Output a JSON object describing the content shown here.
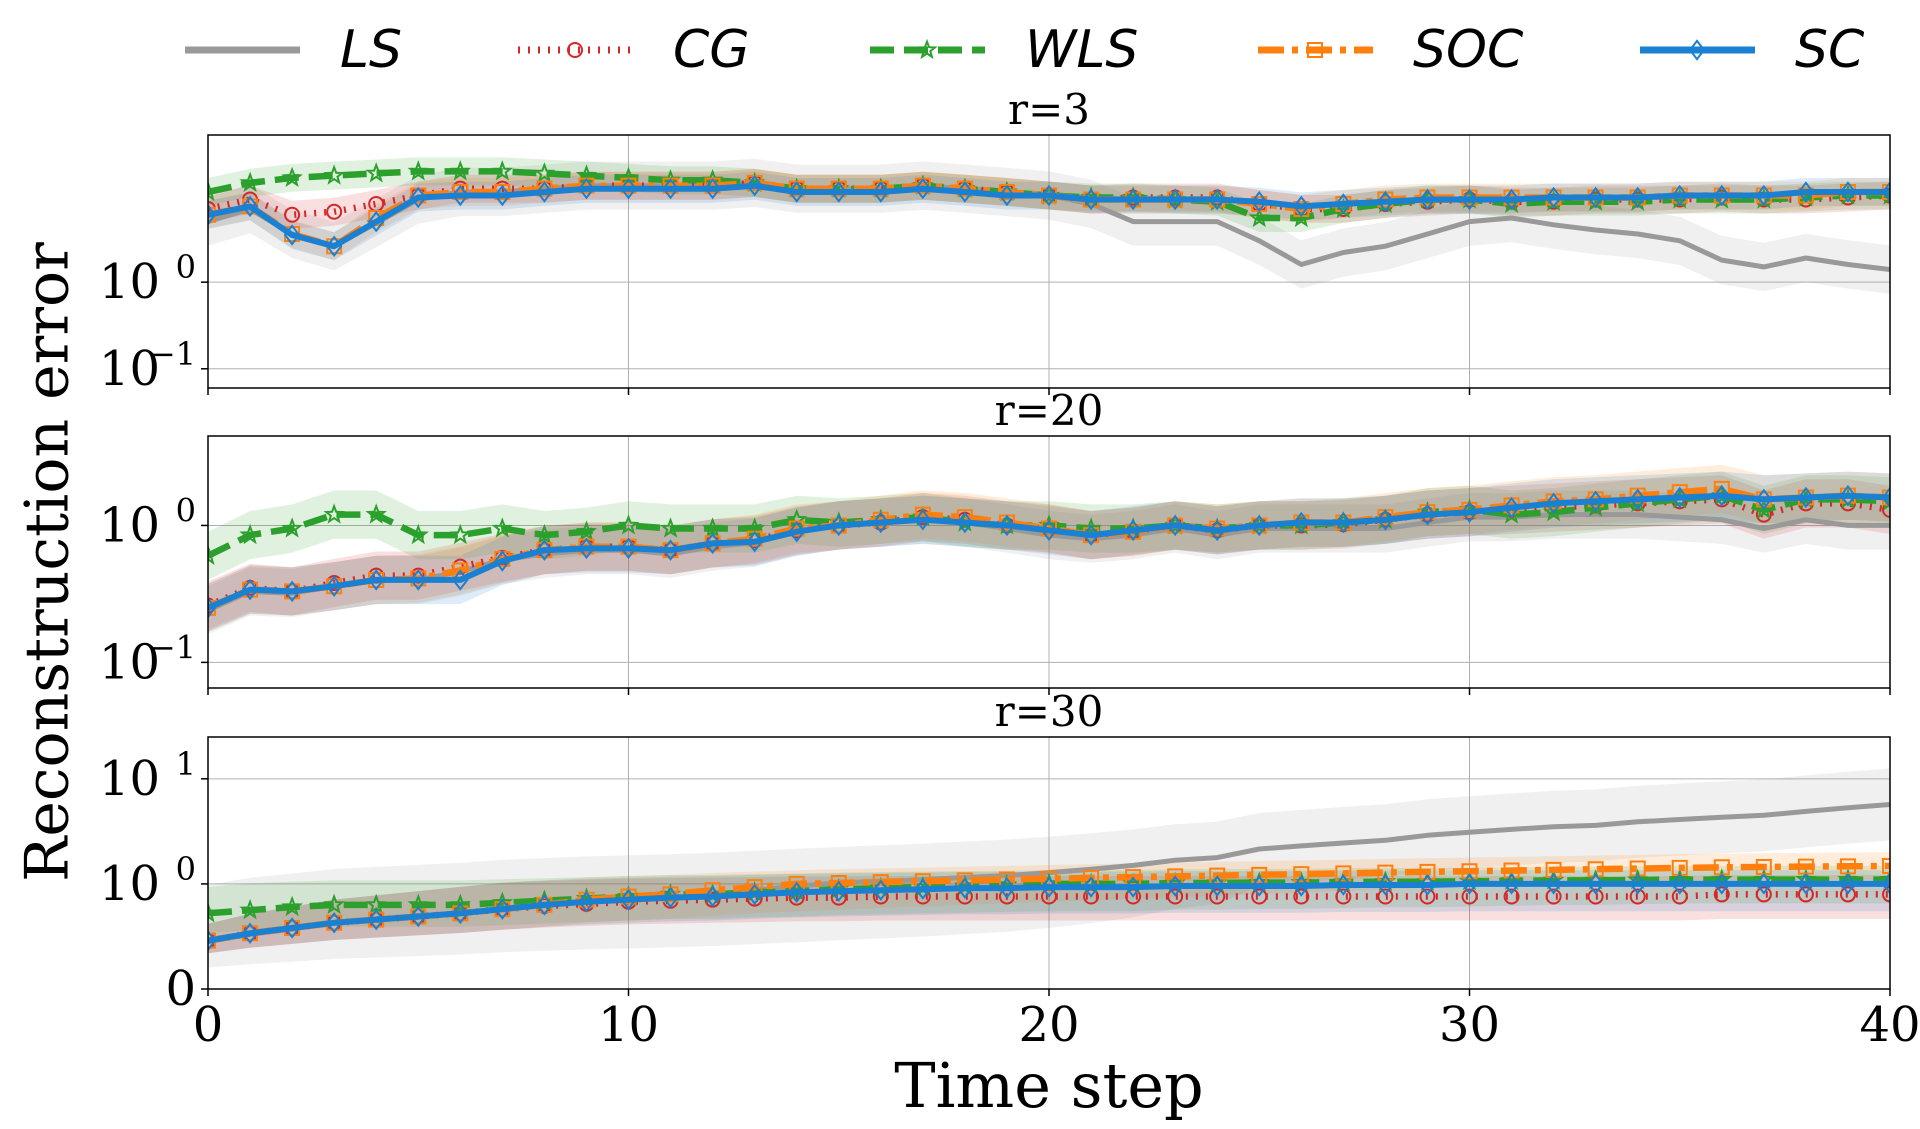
{
  "figure": {
    "ylabel": "Reconstruction error",
    "xlabel": "Time step"
  },
  "legend": {
    "placement": "top",
    "entries": [
      {
        "key": "LS",
        "label": "LS",
        "color": "#999999",
        "style": "solid",
        "marker": "none"
      },
      {
        "key": "CG",
        "label": "CG",
        "color": "#d62728",
        "style": "dotted",
        "marker": "circle"
      },
      {
        "key": "WLS",
        "label": "WLS",
        "color": "#2ca02c",
        "style": "dashed",
        "marker": "star"
      },
      {
        "key": "SOC",
        "label": "SOC",
        "color": "#ff7f0e",
        "style": "dashdot",
        "marker": "square"
      },
      {
        "key": "SC",
        "label": "SC",
        "color": "#1a80d2",
        "style": "solid",
        "marker": "diamond"
      }
    ]
  },
  "chart_data": [
    {
      "type": "line",
      "title": "r=3",
      "xlabel": "",
      "ylabel": "",
      "yscale": "log",
      "xlim": [
        0,
        40
      ],
      "ylim": [
        0.06,
        50
      ],
      "yticks": [
        {
          "value": 0.1,
          "base": "10",
          "exp": "−1"
        },
        {
          "value": 1,
          "base": "10",
          "exp": "0"
        }
      ],
      "xticks": [
        0,
        10,
        20,
        30,
        40
      ],
      "grid": true,
      "band_ratio": 1.45,
      "series": [
        {
          "name": "LS",
          "values": [
            5.0,
            7.0,
            3.6,
            2.6,
            4.8,
            9.0,
            11,
            11,
            12,
            13,
            13,
            13,
            13,
            14,
            12,
            12,
            12,
            13,
            12,
            11,
            10,
            8.0,
            5.0,
            5.0,
            5.0,
            3.0,
            1.6,
            2.2,
            2.6,
            3.6,
            5.0,
            5.5,
            4.6,
            4.0,
            3.6,
            3.0,
            1.8,
            1.5,
            1.9,
            1.6,
            1.4
          ]
        },
        {
          "name": "CG",
          "values": [
            7.0,
            9.0,
            6.0,
            6.5,
            8.0,
            10,
            12,
            12,
            12,
            13,
            13,
            13,
            13,
            14,
            12,
            12,
            12,
            13,
            12,
            11,
            10,
            9.0,
            9.5,
            9.5,
            9.5,
            8.0,
            7.0,
            7.0,
            8.0,
            8.5,
            9.0,
            8.5,
            8.5,
            9.0,
            9.0,
            9.0,
            9.5,
            9.0,
            9.0,
            9.5,
            10
          ]
        },
        {
          "name": "WLS",
          "values": [
            11,
            14,
            16,
            17,
            18,
            19,
            19,
            19,
            18,
            17,
            16,
            15,
            15,
            14,
            12,
            12,
            12,
            13,
            12,
            11,
            10,
            9.5,
            9.5,
            9.0,
            8.5,
            5.5,
            5.5,
            7.0,
            8.0,
            9.0,
            9.0,
            8.0,
            8.5,
            8.5,
            8.5,
            9.0,
            9.0,
            9.0,
            9.5,
            10,
            10
          ]
        },
        {
          "name": "SOC",
          "values": [
            6.0,
            7.5,
            3.6,
            2.6,
            5.5,
            10,
            11,
            11,
            12,
            13,
            13,
            13,
            13,
            14,
            12,
            12,
            12,
            13,
            12,
            11,
            10,
            9.0,
            9.0,
            9.0,
            9.0,
            8.0,
            7.0,
            8.0,
            9.0,
            9.5,
            9.5,
            9.5,
            9.5,
            9.5,
            9.5,
            10,
            10,
            10,
            10,
            11,
            11
          ]
        },
        {
          "name": "SC",
          "values": [
            6.0,
            7.5,
            3.5,
            2.6,
            5.0,
            9.5,
            10,
            10,
            11,
            12,
            12,
            12,
            12,
            13,
            11,
            11,
            11,
            12,
            11,
            10,
            10,
            9.0,
            9.0,
            9.0,
            9.0,
            8.5,
            7.5,
            8.0,
            8.5,
            9.0,
            9.0,
            9.0,
            9.5,
            9.5,
            9.5,
            10,
            10,
            10,
            11,
            11,
            11
          ]
        }
      ]
    },
    {
      "type": "line",
      "title": "r=20",
      "xlabel": "",
      "ylabel": "",
      "yscale": "log",
      "xlim": [
        0,
        40
      ],
      "ylim": [
        0.065,
        4.5
      ],
      "yticks": [
        {
          "value": 0.1,
          "base": "10",
          "exp": "−1"
        },
        {
          "value": 1,
          "base": "10",
          "exp": "0"
        }
      ],
      "xticks": [
        0,
        10,
        20,
        30,
        40
      ],
      "grid": true,
      "band_ratio": 1.5,
      "series": [
        {
          "name": "LS",
          "values": [
            0.24,
            0.33,
            0.32,
            0.36,
            0.4,
            0.4,
            0.46,
            0.56,
            0.62,
            0.66,
            0.66,
            0.62,
            0.7,
            0.75,
            0.9,
            1.0,
            1.05,
            1.1,
            1.05,
            0.95,
            0.85,
            0.8,
            0.85,
            0.95,
            0.85,
            0.95,
            0.95,
            0.95,
            0.95,
            1.05,
            1.15,
            1.15,
            1.2,
            1.2,
            1.2,
            1.15,
            1.1,
            0.95,
            1.1,
            1.0,
            1.0
          ]
        },
        {
          "name": "CG",
          "values": [
            0.26,
            0.35,
            0.33,
            0.38,
            0.43,
            0.43,
            0.5,
            0.58,
            0.66,
            0.7,
            0.7,
            0.66,
            0.74,
            0.78,
            0.92,
            1.0,
            1.05,
            1.15,
            1.1,
            1.0,
            0.95,
            0.85,
            0.9,
            1.0,
            0.92,
            1.0,
            1.0,
            1.02,
            1.1,
            1.2,
            1.25,
            1.3,
            1.35,
            1.4,
            1.45,
            1.5,
            1.55,
            1.2,
            1.45,
            1.45,
            1.3
          ]
        },
        {
          "name": "WLS",
          "values": [
            0.6,
            0.85,
            0.95,
            1.2,
            1.2,
            0.85,
            0.85,
            0.95,
            0.85,
            0.9,
            1.0,
            0.95,
            0.95,
            0.95,
            1.1,
            1.05,
            1.1,
            1.15,
            1.05,
            1.0,
            1.0,
            0.95,
            0.95,
            1.0,
            0.95,
            1.0,
            1.0,
            1.05,
            1.1,
            1.25,
            1.3,
            1.2,
            1.25,
            1.35,
            1.45,
            1.55,
            1.65,
            1.3,
            1.55,
            1.55,
            1.5
          ]
        },
        {
          "name": "SOC",
          "values": [
            0.25,
            0.34,
            0.33,
            0.36,
            0.4,
            0.41,
            0.47,
            0.57,
            0.66,
            0.7,
            0.7,
            0.66,
            0.74,
            0.8,
            0.95,
            1.0,
            1.1,
            1.2,
            1.15,
            1.05,
            0.95,
            0.85,
            0.9,
            1.0,
            0.95,
            1.0,
            1.05,
            1.05,
            1.15,
            1.25,
            1.3,
            1.4,
            1.5,
            1.55,
            1.65,
            1.75,
            1.85,
            1.55,
            1.6,
            1.65,
            1.6
          ]
        },
        {
          "name": "SC",
          "values": [
            0.25,
            0.34,
            0.33,
            0.36,
            0.4,
            0.4,
            0.4,
            0.55,
            0.66,
            0.68,
            0.68,
            0.66,
            0.74,
            0.76,
            0.9,
            1.0,
            1.05,
            1.1,
            1.05,
            1.0,
            0.92,
            0.85,
            0.92,
            1.0,
            0.92,
            1.0,
            1.05,
            1.05,
            1.1,
            1.2,
            1.25,
            1.35,
            1.45,
            1.5,
            1.55,
            1.6,
            1.65,
            1.55,
            1.6,
            1.65,
            1.6
          ]
        }
      ]
    },
    {
      "type": "line",
      "title": "r=30",
      "xlabel": "Time step",
      "ylabel": "",
      "yscale": "symlog",
      "linthresh": 1,
      "xlim": [
        0,
        40
      ],
      "ylim": [
        0,
        25
      ],
      "yticks": [
        {
          "value": 0,
          "base": "0",
          "exp": ""
        },
        {
          "value": 1,
          "base": "10",
          "exp": "0"
        },
        {
          "value": 10,
          "base": "10",
          "exp": "1"
        }
      ],
      "xticks": [
        0,
        10,
        20,
        30,
        40
      ],
      "grid": true,
      "band_ratio": 1.35,
      "series": [
        {
          "name": "LS",
          "values": [
            0.45,
            0.52,
            0.57,
            0.63,
            0.66,
            0.69,
            0.72,
            0.77,
            0.8,
            0.83,
            0.85,
            0.87,
            0.9,
            0.94,
            0.98,
            1.02,
            1.06,
            1.1,
            1.15,
            1.2,
            1.28,
            1.38,
            1.5,
            1.68,
            1.78,
            2.15,
            2.3,
            2.45,
            2.6,
            2.9,
            3.1,
            3.3,
            3.5,
            3.6,
            3.9,
            4.1,
            4.3,
            4.5,
            4.9,
            5.3,
            5.7
          ]
        },
        {
          "name": "CG",
          "values": [
            0.46,
            0.53,
            0.58,
            0.63,
            0.66,
            0.69,
            0.72,
            0.76,
            0.79,
            0.81,
            0.83,
            0.84,
            0.85,
            0.86,
            0.87,
            0.87,
            0.88,
            0.88,
            0.88,
            0.88,
            0.88,
            0.88,
            0.88,
            0.88,
            0.88,
            0.88,
            0.88,
            0.88,
            0.88,
            0.88,
            0.88,
            0.88,
            0.88,
            0.88,
            0.88,
            0.88,
            0.9,
            0.9,
            0.9,
            0.9,
            0.9
          ]
        },
        {
          "name": "WLS",
          "values": [
            0.72,
            0.75,
            0.78,
            0.8,
            0.8,
            0.8,
            0.8,
            0.82,
            0.84,
            0.86,
            0.88,
            0.9,
            0.9,
            0.92,
            0.93,
            0.95,
            0.96,
            0.97,
            0.98,
            0.99,
            1.0,
            1.0,
            1.0,
            1.02,
            1.02,
            1.03,
            1.03,
            1.04,
            1.05,
            1.05,
            1.06,
            1.07,
            1.08,
            1.08,
            1.09,
            1.1,
            1.1,
            1.1,
            1.1,
            1.1,
            1.1
          ]
        },
        {
          "name": "SOC",
          "values": [
            0.46,
            0.53,
            0.58,
            0.63,
            0.66,
            0.69,
            0.72,
            0.76,
            0.8,
            0.85,
            0.88,
            0.9,
            0.94,
            0.97,
            1.0,
            1.02,
            1.04,
            1.06,
            1.08,
            1.1,
            1.12,
            1.14,
            1.16,
            1.18,
            1.2,
            1.22,
            1.24,
            1.26,
            1.28,
            1.3,
            1.32,
            1.34,
            1.36,
            1.38,
            1.4,
            1.42,
            1.44,
            1.45,
            1.46,
            1.47,
            1.48
          ]
        },
        {
          "name": "SC",
          "values": [
            0.46,
            0.53,
            0.58,
            0.63,
            0.66,
            0.69,
            0.72,
            0.76,
            0.8,
            0.83,
            0.85,
            0.87,
            0.88,
            0.9,
            0.92,
            0.93,
            0.94,
            0.95,
            0.96,
            0.96,
            0.97,
            0.97,
            0.97,
            0.98,
            0.98,
            0.98,
            0.98,
            0.99,
            0.99,
            0.99,
            1.0,
            1.0,
            1.0,
            1.0,
            1.0,
            1.0,
            1.0,
            1.0,
            1.0,
            1.0,
            1.0
          ]
        }
      ]
    }
  ]
}
